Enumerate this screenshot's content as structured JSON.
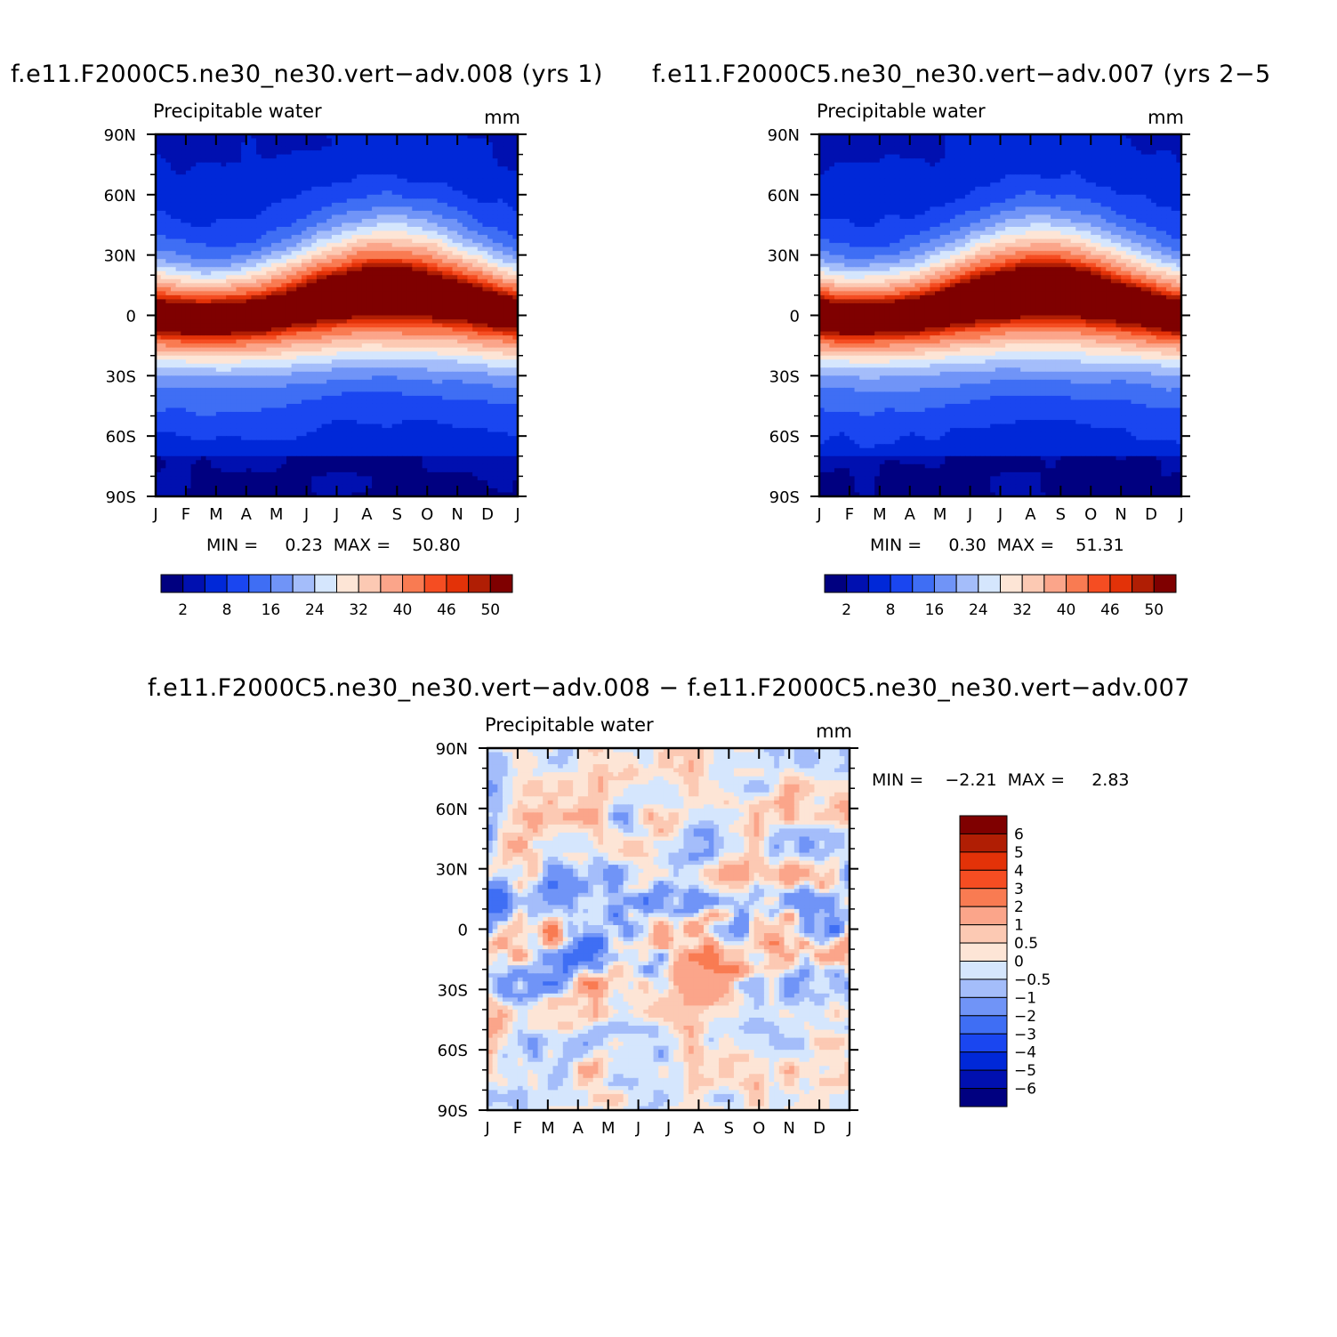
{
  "chart_data": [
    {
      "type": "heatmap",
      "title": "f.e11.F2000C5.ne30_ne30.vert−adv.008 (yrs 1)",
      "left_label": "Precipitable water",
      "units": "mm",
      "x_ticks": [
        "J",
        "F",
        "M",
        "A",
        "M",
        "J",
        "J",
        "A",
        "S",
        "O",
        "N",
        "D",
        "J"
      ],
      "y_ticks": [
        "90N",
        "60N",
        "30N",
        "0",
        "30S",
        "60S",
        "90S"
      ],
      "stats": "MIN =     0.23  MAX =    50.80",
      "min": 0.23,
      "max": 50.8,
      "peak_lat": 10,
      "peak_month": 7.7,
      "levels": [
        2,
        4,
        8,
        12,
        16,
        20,
        24,
        28,
        32,
        36,
        40,
        44,
        46,
        48,
        50
      ],
      "colorbar_labels": [
        "2",
        "8",
        "16",
        "24",
        "32",
        "40",
        "46",
        "50"
      ],
      "colors": [
        "#000080",
        "#0010b0",
        "#0028d8",
        "#1a46f0",
        "#3f6ef4",
        "#7094f7",
        "#a4bdfa",
        "#d5e6fd",
        "#fde5d6",
        "#fcc9b3",
        "#fba58a",
        "#f97b52",
        "#f54d22",
        "#e33208",
        "#b01e04",
        "#7f0000"
      ]
    },
    {
      "type": "heatmap",
      "title": "f.e11.F2000C5.ne30_ne30.vert−adv.007 (yrs 2−5",
      "left_label": "Precipitable water",
      "units": "mm",
      "x_ticks": [
        "J",
        "F",
        "M",
        "A",
        "M",
        "J",
        "J",
        "A",
        "S",
        "O",
        "N",
        "D",
        "J"
      ],
      "y_ticks": [
        "90N",
        "60N",
        "30N",
        "0",
        "30S",
        "60S",
        "90S"
      ],
      "stats": "MIN =     0.30  MAX =    51.31",
      "min": 0.3,
      "max": 51.31,
      "peak_lat": 9,
      "peak_month": 7.4,
      "levels": [
        2,
        4,
        8,
        12,
        16,
        20,
        24,
        28,
        32,
        36,
        40,
        44,
        46,
        48,
        50
      ],
      "colorbar_labels": [
        "2",
        "8",
        "16",
        "24",
        "32",
        "40",
        "46",
        "50"
      ],
      "colors": [
        "#000080",
        "#0010b0",
        "#0028d8",
        "#1a46f0",
        "#3f6ef4",
        "#7094f7",
        "#a4bdfa",
        "#d5e6fd",
        "#fde5d6",
        "#fcc9b3",
        "#fba58a",
        "#f97b52",
        "#f54d22",
        "#e33208",
        "#b01e04",
        "#7f0000"
      ]
    },
    {
      "type": "heatmap",
      "title": "f.e11.F2000C5.ne30_ne30.vert−adv.008 − f.e11.F2000C5.ne30_ne30.vert−adv.007",
      "left_label": "Precipitable water",
      "units": "mm",
      "x_ticks": [
        "J",
        "F",
        "M",
        "A",
        "M",
        "J",
        "J",
        "A",
        "S",
        "O",
        "N",
        "D",
        "J"
      ],
      "y_ticks": [
        "90N",
        "60N",
        "30N",
        "0",
        "30S",
        "60S",
        "90S"
      ],
      "stats": "MIN =    −2.21  MAX =     2.83",
      "min": -2.21,
      "max": 2.83,
      "levels": [
        -6,
        -5,
        -4,
        -3,
        -2,
        -1,
        -0.5,
        0,
        0.5,
        1,
        2,
        3,
        4,
        5,
        6
      ],
      "colorbar_labels": [
        "6",
        "5",
        "4",
        "3",
        "2",
        "1",
        "0.5",
        "0",
        "−0.5",
        "−1",
        "−2",
        "−3",
        "−4",
        "−5",
        "−6"
      ],
      "colors": [
        "#000080",
        "#0010b0",
        "#0028d8",
        "#1a46f0",
        "#3f6ef4",
        "#7094f7",
        "#a4bdfa",
        "#d5e6fd",
        "#fde5d6",
        "#fcc9b3",
        "#fba58a",
        "#f97b52",
        "#f54d22",
        "#e33208",
        "#b01e04",
        "#7f0000"
      ]
    }
  ]
}
